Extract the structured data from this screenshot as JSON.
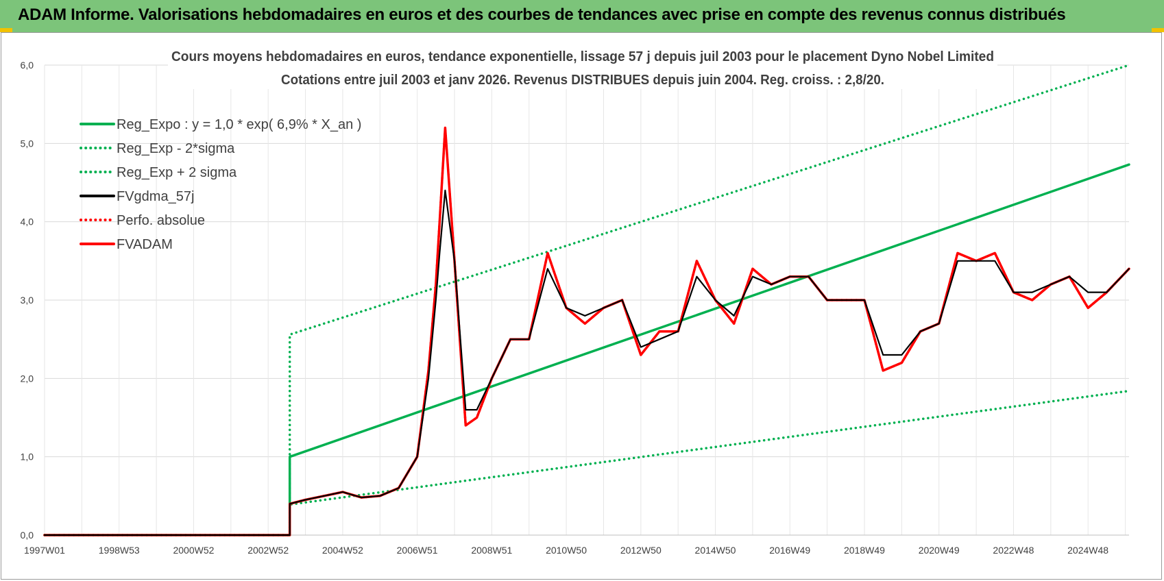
{
  "header": {
    "title": "ADAM Informe. Valorisations hebdomadaires en euros et des courbes de tendances avec prise en compte des revenus connus distribués"
  },
  "colors": {
    "banner": "#7cc47a",
    "green": "#00b050",
    "black": "#000000",
    "red": "#ff0000"
  },
  "chart_data": {
    "type": "line",
    "title": "Cours moyens  hebdomadaires en euros, tendance exponentielle, lissage 57 j depuis juil 2003 pour le placement Dyno Nobel Limited",
    "subtitle": "Cotations entre juil 2003 et janv 2026. Revenus DISTRIBUES  depuis juin 2004.  Reg. croiss. : 2,8/20.",
    "x_tick_labels": [
      "1997W01",
      "1998W53",
      "2000W52",
      "2002W52",
      "2004W52",
      "2006W51",
      "2008W51",
      "2010W50",
      "2012W50",
      "2014W50",
      "2016W49",
      "2018W49",
      "2020W49",
      "2022W48",
      "2024W48"
    ],
    "xlim": [
      1997.0,
      2026.1
    ],
    "ylim": [
      0,
      6
    ],
    "y_ticks": [
      "0,0",
      "1,0",
      "2,0",
      "3,0",
      "4,0",
      "5,0",
      "6,0"
    ],
    "grid": true,
    "legend_position": "top-left",
    "series": [
      {
        "name": "Reg_Expo : y = 1,0 * exp( 6,9% *  X_an )",
        "color": "#00b050",
        "style": "solid",
        "x": [
          1997.0,
          2003.58,
          2003.58,
          2026.1
        ],
        "y": [
          0,
          0,
          1.0,
          4.73
        ],
        "model": "1.0*exp(0.069*(x-2003.58))"
      },
      {
        "name": "Reg_Exp - 2*sigma",
        "color": "#00b050",
        "style": "dotted",
        "x": [
          1997.0,
          2003.58,
          2003.58,
          2026.1
        ],
        "y": [
          0,
          0,
          0.39,
          1.84
        ],
        "model": "0.39*exp(0.069*(x-2003.58))"
      },
      {
        "name": "Reg_Exp + 2 sigma",
        "color": "#00b050",
        "style": "dotted",
        "x": [
          1997.0,
          2003.58,
          2003.58,
          2026.1
        ],
        "y": [
          0,
          0,
          2.56,
          6.0
        ],
        "model": "2.56*exp(0.069*(x-2003.58)), capped at 6,0"
      },
      {
        "name": "FVgdma_57j",
        "color": "#000000",
        "style": "solid",
        "x": [
          1997.0,
          2003.58,
          2003.58,
          2004.0,
          2004.5,
          2005.0,
          2005.5,
          2006.0,
          2006.5,
          2007.0,
          2007.3,
          2007.5,
          2007.6,
          2007.75,
          2008.0,
          2008.3,
          2008.6,
          2009.0,
          2009.5,
          2010.0,
          2010.5,
          2011.0,
          2011.5,
          2012.0,
          2012.5,
          2013.0,
          2013.5,
          2014.0,
          2014.5,
          2015.0,
          2015.5,
          2016.0,
          2016.5,
          2017.0,
          2017.5,
          2018.0,
          2018.5,
          2019.0,
          2019.5,
          2020.0,
          2020.5,
          2021.0,
          2021.5,
          2022.0,
          2022.5,
          2023.0,
          2023.5,
          2024.0,
          2024.5,
          2025.0,
          2025.5,
          2026.1
        ],
        "y": [
          0,
          0,
          0.4,
          0.45,
          0.5,
          0.55,
          0.48,
          0.5,
          0.6,
          1.0,
          2.0,
          3.0,
          3.6,
          4.4,
          3.5,
          1.6,
          1.6,
          2.0,
          2.5,
          2.5,
          3.4,
          2.9,
          2.8,
          2.9,
          3.0,
          2.4,
          2.5,
          2.6,
          3.3,
          3.0,
          2.8,
          3.3,
          3.2,
          3.3,
          3.3,
          3.0,
          3.0,
          3.0,
          2.3,
          2.3,
          2.6,
          2.7,
          3.5,
          3.5,
          3.5,
          3.1,
          3.1,
          3.2,
          3.3,
          3.1,
          3.1,
          3.4
        ]
      },
      {
        "name": "Perfo. absolue",
        "color": "#ff0000",
        "style": "dotted",
        "x": [
          1997.0,
          2003.58,
          2003.58,
          2004.0,
          2004.5,
          2005.0,
          2005.5,
          2006.0,
          2006.5,
          2007.0,
          2007.3,
          2007.5,
          2007.6,
          2007.75,
          2008.0,
          2008.3,
          2008.6,
          2009.0,
          2009.5,
          2010.0,
          2010.5,
          2011.0,
          2011.5,
          2012.0,
          2012.5,
          2013.0,
          2013.5,
          2014.0,
          2014.5,
          2015.0,
          2015.5,
          2016.0,
          2016.5,
          2017.0,
          2017.5,
          2018.0,
          2018.5,
          2019.0,
          2019.5,
          2020.0,
          2020.5,
          2021.0,
          2021.5,
          2022.0,
          2022.5,
          2023.0,
          2023.5,
          2024.0,
          2024.5,
          2025.0,
          2025.5,
          2026.1
        ],
        "y": [
          0,
          0,
          0.4,
          0.45,
          0.5,
          0.55,
          0.48,
          0.5,
          0.6,
          1.0,
          2.1,
          3.2,
          4.0,
          5.2,
          3.5,
          1.4,
          1.5,
          2.0,
          2.5,
          2.5,
          3.6,
          2.9,
          2.7,
          2.9,
          3.0,
          2.3,
          2.6,
          2.6,
          3.5,
          3.0,
          2.7,
          3.4,
          3.2,
          3.3,
          3.3,
          3.0,
          3.0,
          3.0,
          2.1,
          2.2,
          2.6,
          2.7,
          3.6,
          3.5,
          3.6,
          3.1,
          3.0,
          3.2,
          3.3,
          2.9,
          3.1,
          3.4
        ]
      },
      {
        "name": "FVADAM",
        "color": "#ff0000",
        "style": "solid",
        "x": [
          1997.0,
          2003.58,
          2003.58,
          2004.0,
          2004.5,
          2005.0,
          2005.5,
          2006.0,
          2006.5,
          2007.0,
          2007.3,
          2007.5,
          2007.6,
          2007.75,
          2008.0,
          2008.3,
          2008.6,
          2009.0,
          2009.5,
          2010.0,
          2010.5,
          2011.0,
          2011.5,
          2012.0,
          2012.5,
          2013.0,
          2013.5,
          2014.0,
          2014.5,
          2015.0,
          2015.5,
          2016.0,
          2016.5,
          2017.0,
          2017.5,
          2018.0,
          2018.5,
          2019.0,
          2019.5,
          2020.0,
          2020.5,
          2021.0,
          2021.5,
          2022.0,
          2022.5,
          2023.0,
          2023.5,
          2024.0,
          2024.5,
          2025.0,
          2025.5,
          2026.1
        ],
        "y": [
          0,
          0,
          0.4,
          0.45,
          0.5,
          0.55,
          0.48,
          0.5,
          0.6,
          1.0,
          2.1,
          3.2,
          4.0,
          5.2,
          3.5,
          1.4,
          1.5,
          2.0,
          2.5,
          2.5,
          3.6,
          2.9,
          2.7,
          2.9,
          3.0,
          2.3,
          2.6,
          2.6,
          3.5,
          3.0,
          2.7,
          3.4,
          3.2,
          3.3,
          3.3,
          3.0,
          3.0,
          3.0,
          2.1,
          2.2,
          2.6,
          2.7,
          3.6,
          3.5,
          3.6,
          3.1,
          3.0,
          3.2,
          3.3,
          2.9,
          3.1,
          3.4
        ]
      }
    ]
  }
}
